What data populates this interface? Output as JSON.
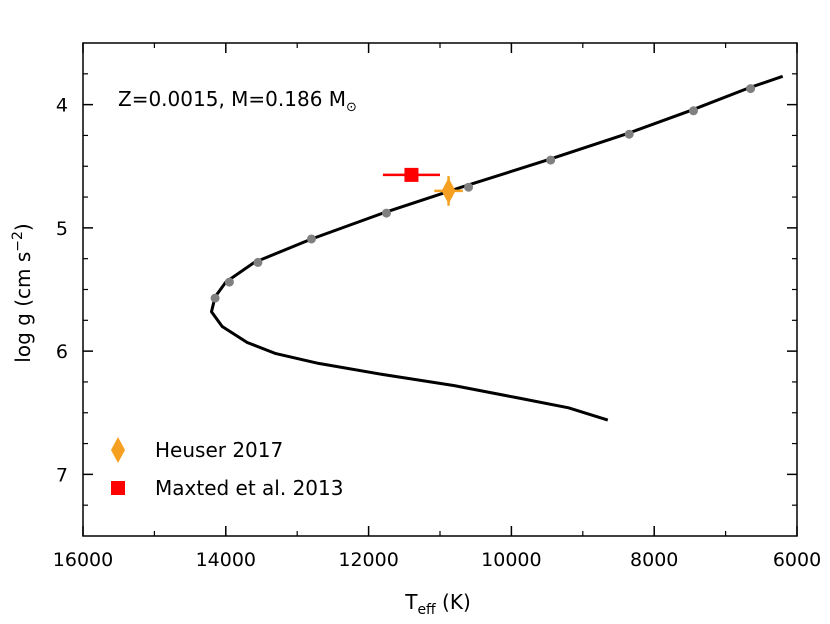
{
  "chart_data": {
    "type": "scatter",
    "annotation": {
      "text": "Z=0.0015, M=0.186 M",
      "sun_symbol": "⊙"
    },
    "xaxis": {
      "label_main": "T",
      "label_sub": "eff",
      "label_rest": " (K)",
      "range": [
        16000,
        6000
      ],
      "reversed": true,
      "ticks": [
        16000,
        14000,
        12000,
        10000,
        8000,
        6000
      ],
      "tick_labels": [
        "16000",
        "14000",
        "12000",
        "10000",
        "8000",
        "6000"
      ],
      "minor_step": 1000
    },
    "yaxis": {
      "label_main": "log g (cm s",
      "label_sup": "−2",
      "label_rest": ")",
      "range": [
        3.5,
        7.5
      ],
      "reversed": true,
      "ticks": [
        4,
        5,
        6,
        7
      ],
      "tick_labels": [
        "4",
        "5",
        "6",
        "7"
      ],
      "minor_step": 0.25
    },
    "track": {
      "color": "#000000",
      "points": [
        [
          6200,
          3.77
        ],
        [
          6700,
          3.87
        ],
        [
          7500,
          4.05
        ],
        [
          8400,
          4.24
        ],
        [
          9500,
          4.45
        ],
        [
          10700,
          4.67
        ],
        [
          11800,
          4.88
        ],
        [
          12800,
          5.09
        ],
        [
          13600,
          5.28
        ],
        [
          14000,
          5.44
        ],
        [
          14150,
          5.56
        ],
        [
          14200,
          5.68
        ],
        [
          14050,
          5.8
        ],
        [
          13700,
          5.93
        ],
        [
          13300,
          6.02
        ],
        [
          12700,
          6.1
        ],
        [
          11800,
          6.19
        ],
        [
          10800,
          6.28
        ],
        [
          9900,
          6.38
        ],
        [
          9200,
          6.46
        ],
        [
          8650,
          6.56
        ]
      ]
    },
    "track_markers": {
      "color": "#808080",
      "points": [
        [
          6650,
          3.87
        ],
        [
          7450,
          4.05
        ],
        [
          8350,
          4.24
        ],
        [
          9450,
          4.45
        ],
        [
          10600,
          4.67
        ],
        [
          11750,
          4.88
        ],
        [
          12800,
          5.09
        ],
        [
          13550,
          5.28
        ],
        [
          13950,
          5.44
        ],
        [
          14150,
          5.57
        ]
      ]
    },
    "series": [
      {
        "name": "Heuser 2017",
        "marker": "diamond",
        "color": "#f5a020",
        "x": 10880,
        "y": 4.7,
        "xerr": 200,
        "yerr": 0.12
      },
      {
        "name": "Maxted et al. 2013",
        "marker": "square",
        "color": "#ff0000",
        "x": 11400,
        "y": 4.57,
        "xerr": 400,
        "yerr": 0.03
      }
    ],
    "legend": {
      "position": "bottom-left"
    },
    "grid": false
  }
}
